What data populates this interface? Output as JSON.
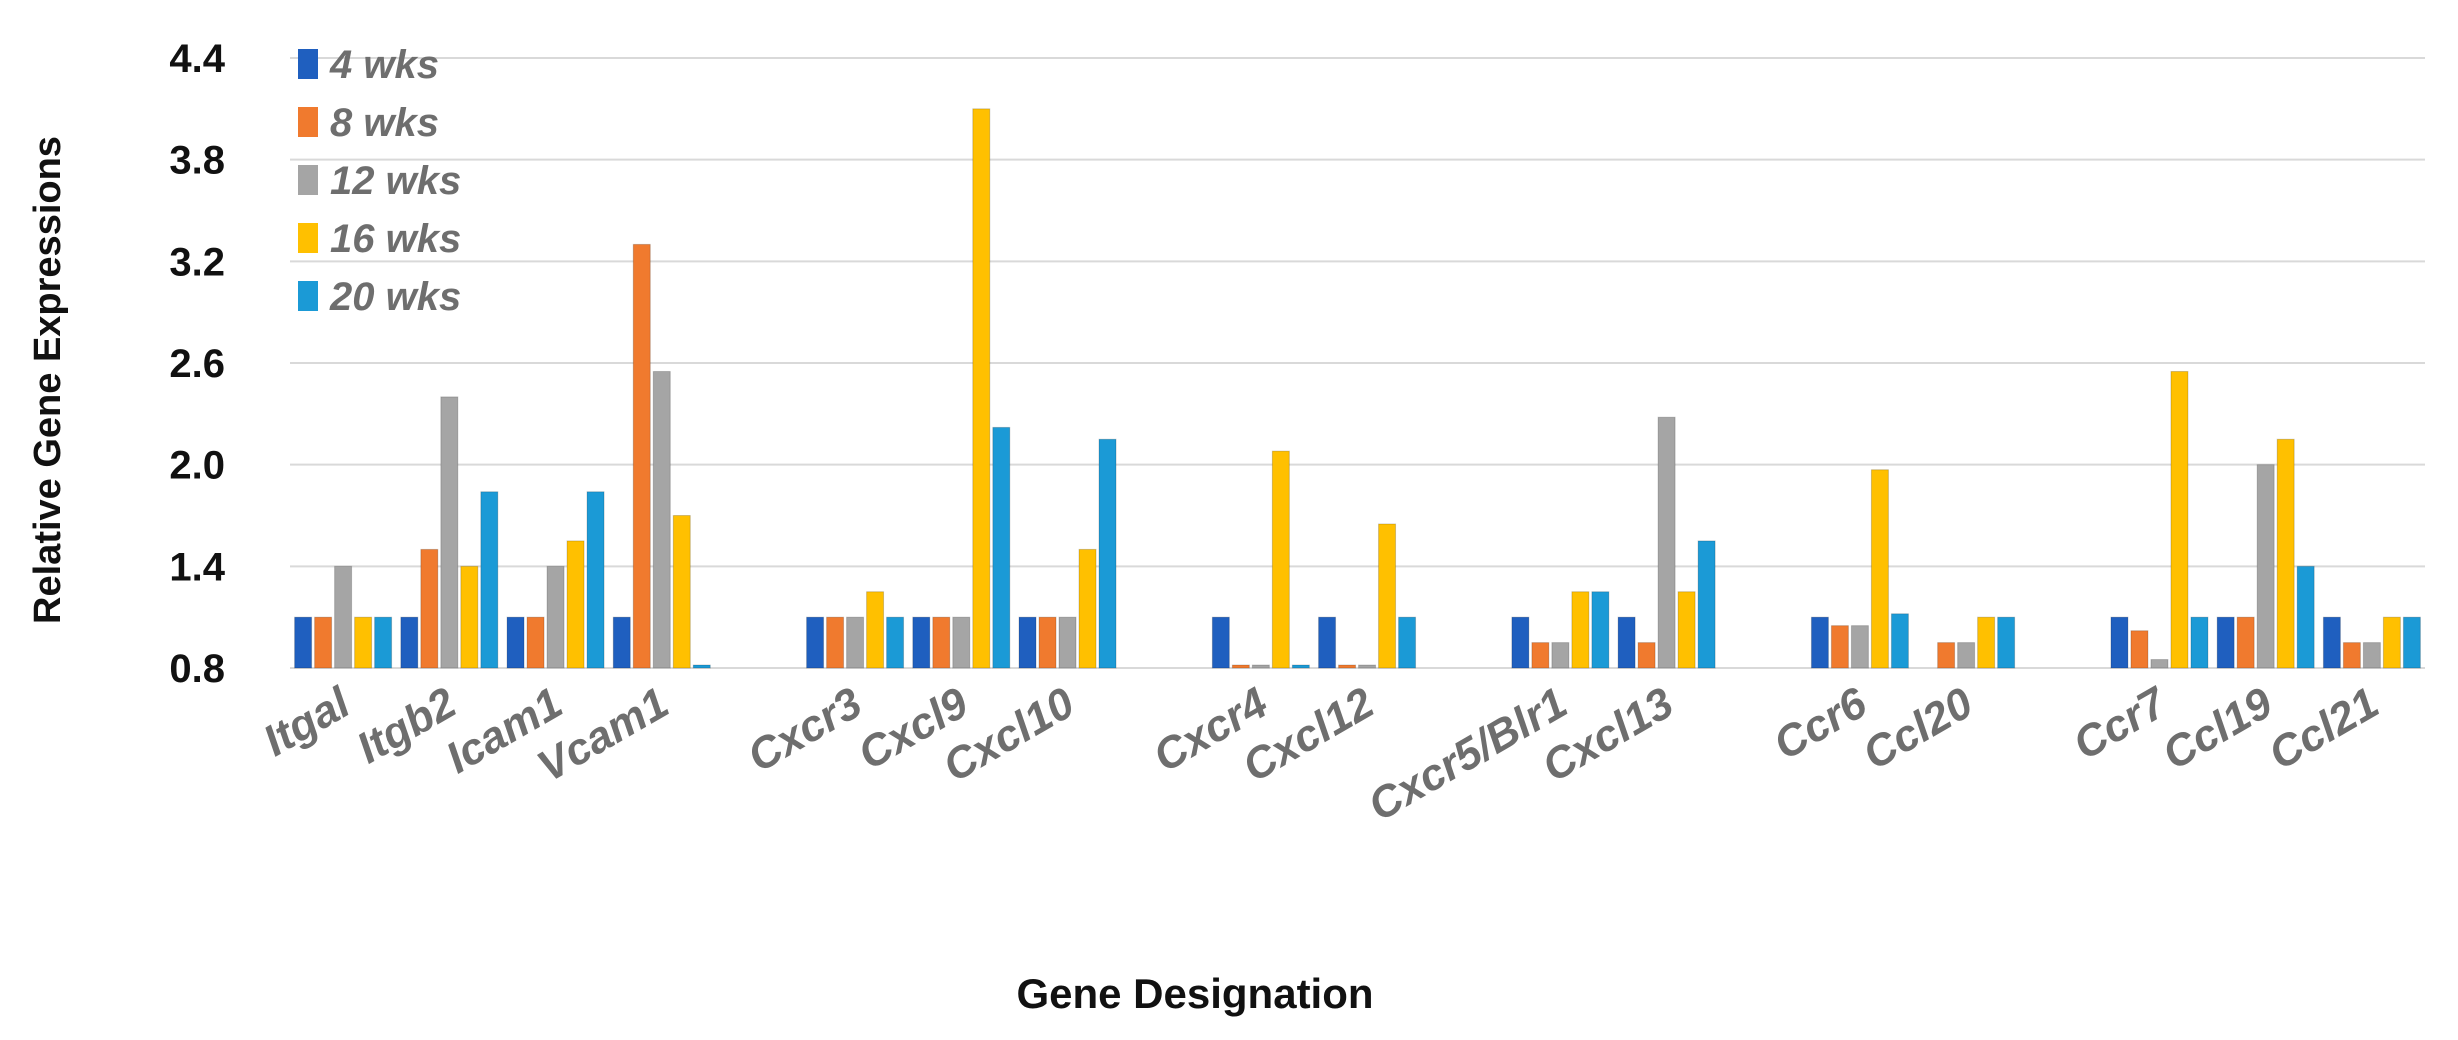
{
  "chart_data": {
    "type": "bar",
    "title": "",
    "xlabel": "Gene Designation",
    "ylabel": "Relative Gene Expressions",
    "ylim": [
      0.8,
      4.4
    ],
    "yticks": [
      "4.4",
      "3.8",
      "3.2",
      "2.6",
      "2.0",
      "1.4",
      "0.8"
    ],
    "grid": true,
    "legend_position": "top-left",
    "categories": [
      "Itgal",
      "Itgb2",
      "Icam1",
      "Vcam1",
      "Cxcr3",
      "Cxcl9",
      "Cxcl10",
      "Cxcr4",
      "Cxcl12",
      "Cxcr5/Blr1",
      "Cxcl13",
      "Ccr6",
      "Ccl20",
      "Ccr7",
      "Ccl19",
      "Ccl21"
    ],
    "groups": [
      4,
      3,
      2,
      2,
      2,
      3
    ],
    "series": [
      {
        "name": "4 wks",
        "color": "#1f5fbf",
        "values": [
          1.1,
          1.1,
          1.1,
          1.1,
          1.1,
          1.1,
          1.1,
          1.1,
          1.1,
          1.1,
          1.1,
          1.1,
          null,
          1.1,
          1.1,
          1.1
        ]
      },
      {
        "name": "8 wks",
        "color": "#f07a2e",
        "values": [
          1.1,
          1.5,
          1.1,
          3.3,
          1.1,
          1.1,
          1.1,
          0.8,
          0.8,
          0.95,
          0.95,
          1.05,
          0.95,
          1.02,
          1.1,
          0.95
        ]
      },
      {
        "name": "12 wks",
        "color": "#a5a5a5",
        "values": [
          1.4,
          2.4,
          1.4,
          2.55,
          1.1,
          1.1,
          1.1,
          0.8,
          0.8,
          0.95,
          2.28,
          1.05,
          0.95,
          0.85,
          2.0,
          0.95
        ]
      },
      {
        "name": "16 wks",
        "color": "#ffc000",
        "values": [
          1.1,
          1.4,
          1.55,
          1.7,
          1.25,
          4.1,
          1.5,
          2.08,
          1.65,
          1.25,
          1.25,
          1.97,
          1.1,
          2.55,
          2.15,
          1.1
        ]
      },
      {
        "name": "20 wks",
        "color": "#1b9ad6",
        "values": [
          1.1,
          1.84,
          1.84,
          0.8,
          1.1,
          2.22,
          2.15,
          0.8,
          1.1,
          1.25,
          1.55,
          1.12,
          1.1,
          1.1,
          1.4,
          1.1
        ]
      }
    ]
  }
}
